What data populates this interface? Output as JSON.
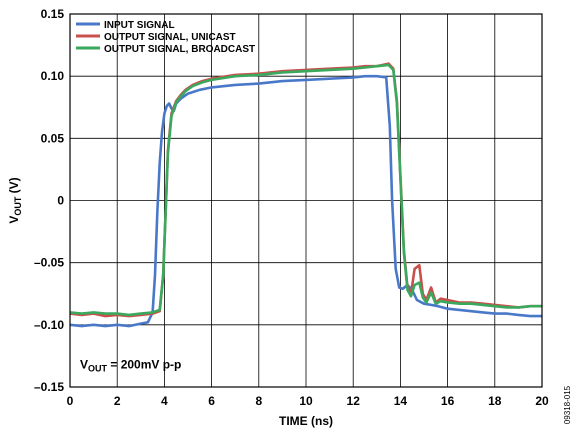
{
  "chart_data": {
    "type": "line",
    "xlabel": "TIME (ns)",
    "ylabel": {
      "main": "V",
      "sub": "OUT",
      "unit": " (V)"
    },
    "xlim": [
      0,
      20
    ],
    "ylim": [
      -0.15,
      0.15
    ],
    "x_ticks": [
      0,
      2,
      4,
      6,
      8,
      10,
      12,
      14,
      16,
      18,
      20
    ],
    "x_tick_labels": [
      "0",
      "2",
      "4",
      "6",
      "8",
      "10",
      "12",
      "14",
      "16",
      "18",
      "20"
    ],
    "y_ticks": [
      -0.15,
      -0.1,
      -0.05,
      0,
      0.05,
      0.1,
      0.15
    ],
    "y_tick_labels": [
      "–0.15",
      "–0.10",
      "–0.05",
      "0",
      "0.05",
      "0.10",
      "0.15"
    ],
    "grid": true,
    "legend_position": "top-left",
    "annotation": {
      "prefix": "V",
      "sub": "OUT",
      "suffix": " = 200mV p-p"
    },
    "figure_id": "09318-015",
    "series": [
      {
        "name": "INPUT SIGNAL",
        "color": "#4a78c9",
        "x": [
          0,
          0.5,
          1.0,
          1.5,
          2.0,
          2.5,
          3.0,
          3.3,
          3.5,
          3.6,
          3.7,
          3.8,
          3.9,
          4.0,
          4.1,
          4.2,
          4.3,
          4.4,
          4.5,
          4.7,
          5.0,
          5.5,
          6.0,
          7.0,
          8.0,
          9.0,
          10.0,
          11.0,
          12.0,
          12.5,
          13.0,
          13.4,
          13.55,
          13.65,
          13.8,
          13.95,
          14.1,
          14.3,
          14.5,
          14.7,
          15.0,
          15.3,
          15.6,
          16.0,
          16.5,
          17.0,
          17.5,
          18.0,
          18.5,
          19.0,
          19.5,
          20.0
        ],
        "y": [
          -0.1,
          -0.101,
          -0.1,
          -0.101,
          -0.1,
          -0.101,
          -0.099,
          -0.098,
          -0.09,
          -0.06,
          -0.01,
          0.03,
          0.055,
          0.07,
          0.076,
          0.078,
          0.074,
          0.072,
          0.078,
          0.082,
          0.086,
          0.089,
          0.091,
          0.093,
          0.094,
          0.096,
          0.097,
          0.098,
          0.099,
          0.1,
          0.1,
          0.099,
          0.06,
          0.0,
          -0.055,
          -0.07,
          -0.071,
          -0.068,
          -0.072,
          -0.08,
          -0.083,
          -0.084,
          -0.085,
          -0.087,
          -0.088,
          -0.089,
          -0.09,
          -0.091,
          -0.091,
          -0.092,
          -0.093,
          -0.093
        ]
      },
      {
        "name": "OUTPUT SIGNAL, UNICAST",
        "color": "#c8504b",
        "x": [
          0,
          0.5,
          1.0,
          1.5,
          2.0,
          2.5,
          3.0,
          3.5,
          3.8,
          3.95,
          4.05,
          4.15,
          4.3,
          4.5,
          4.7,
          4.9,
          5.2,
          5.6,
          6.0,
          7.0,
          8.0,
          9.0,
          10.0,
          11.0,
          12.0,
          12.5,
          13.0,
          13.5,
          13.7,
          13.85,
          14.0,
          14.15,
          14.3,
          14.45,
          14.6,
          14.8,
          14.95,
          15.1,
          15.3,
          15.5,
          15.7,
          16.0,
          16.5,
          17.0,
          17.5,
          18.0,
          18.5,
          19.0,
          19.5,
          20.0
        ],
        "y": [
          -0.091,
          -0.092,
          -0.091,
          -0.093,
          -0.092,
          -0.093,
          -0.092,
          -0.091,
          -0.089,
          -0.06,
          -0.01,
          0.04,
          0.07,
          0.08,
          0.085,
          0.089,
          0.093,
          0.096,
          0.098,
          0.101,
          0.102,
          0.104,
          0.105,
          0.106,
          0.107,
          0.108,
          0.108,
          0.11,
          0.106,
          0.08,
          0.02,
          -0.04,
          -0.07,
          -0.075,
          -0.055,
          -0.052,
          -0.075,
          -0.08,
          -0.07,
          -0.082,
          -0.079,
          -0.08,
          -0.082,
          -0.082,
          -0.083,
          -0.084,
          -0.085,
          -0.086,
          -0.085,
          -0.085
        ]
      },
      {
        "name": "OUTPUT SIGNAL, BROADCAST",
        "color": "#3aa95e",
        "x": [
          0,
          0.5,
          1.0,
          1.5,
          2.0,
          2.5,
          3.0,
          3.5,
          3.8,
          3.95,
          4.05,
          4.15,
          4.3,
          4.5,
          4.7,
          4.9,
          5.2,
          5.6,
          6.0,
          7.0,
          8.0,
          9.0,
          10.0,
          11.0,
          12.0,
          12.5,
          13.0,
          13.5,
          13.7,
          13.85,
          14.0,
          14.15,
          14.3,
          14.45,
          14.6,
          14.8,
          14.95,
          15.1,
          15.3,
          15.5,
          15.7,
          16.0,
          16.5,
          17.0,
          17.5,
          18.0,
          18.5,
          19.0,
          19.5,
          20.0
        ],
        "y": [
          -0.09,
          -0.091,
          -0.09,
          -0.091,
          -0.091,
          -0.092,
          -0.091,
          -0.09,
          -0.088,
          -0.06,
          -0.01,
          0.038,
          0.068,
          0.079,
          0.084,
          0.088,
          0.092,
          0.095,
          0.097,
          0.1,
          0.101,
          0.103,
          0.104,
          0.105,
          0.106,
          0.107,
          0.108,
          0.109,
          0.105,
          0.078,
          0.018,
          -0.042,
          -0.072,
          -0.077,
          -0.068,
          -0.066,
          -0.078,
          -0.082,
          -0.074,
          -0.083,
          -0.081,
          -0.082,
          -0.083,
          -0.083,
          -0.084,
          -0.085,
          -0.086,
          -0.086,
          -0.085,
          -0.085
        ]
      }
    ]
  }
}
